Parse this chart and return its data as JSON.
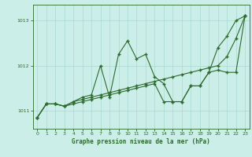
{
  "xlabel": "Graphe pression niveau de la mer (hPa)",
  "background_color": "#cceee8",
  "grid_color": "#aad8d2",
  "line_color": "#2d6a2d",
  "xlim": [
    -0.5,
    23.5
  ],
  "ylim": [
    1010.6,
    1013.35
  ],
  "yticks": [
    1011,
    1012,
    1013
  ],
  "xticks": [
    0,
    1,
    2,
    3,
    4,
    5,
    6,
    7,
    8,
    9,
    10,
    11,
    12,
    13,
    14,
    15,
    16,
    17,
    18,
    19,
    20,
    21,
    22,
    23
  ],
  "series1": {
    "x": [
      0,
      1,
      2,
      3,
      4,
      5,
      6,
      7,
      8,
      9,
      10,
      11,
      12,
      13,
      14,
      15,
      16,
      17,
      18,
      19,
      20,
      21,
      22,
      23
    ],
    "y": [
      1010.85,
      1011.15,
      1011.15,
      1011.1,
      1011.2,
      1011.3,
      1011.35,
      1012.0,
      1011.3,
      1012.25,
      1012.55,
      1012.15,
      1012.25,
      1011.75,
      1011.6,
      1011.2,
      1011.2,
      1011.55,
      1011.55,
      1011.85,
      1012.4,
      1012.65,
      1013.0,
      1013.1
    ]
  },
  "series2": {
    "x": [
      0,
      1,
      2,
      3,
      4,
      5,
      6,
      7,
      8,
      9,
      10,
      11,
      12,
      13,
      14,
      15,
      16,
      17,
      18,
      19,
      20,
      21,
      22,
      23
    ],
    "y": [
      1010.85,
      1011.15,
      1011.15,
      1011.1,
      1011.2,
      1011.25,
      1011.3,
      1011.35,
      1011.4,
      1011.45,
      1011.5,
      1011.55,
      1011.6,
      1011.65,
      1011.7,
      1011.75,
      1011.8,
      1011.85,
      1011.9,
      1011.95,
      1012.0,
      1012.2,
      1012.6,
      1013.1
    ]
  },
  "series3": {
    "x": [
      0,
      1,
      2,
      3,
      4,
      5,
      6,
      7,
      8,
      9,
      10,
      11,
      12,
      13,
      14,
      15,
      16,
      17,
      18,
      19,
      20,
      21,
      22,
      23
    ],
    "y": [
      1010.85,
      1011.15,
      1011.15,
      1011.1,
      1011.15,
      1011.2,
      1011.25,
      1011.3,
      1011.35,
      1011.4,
      1011.45,
      1011.5,
      1011.55,
      1011.6,
      1011.2,
      1011.2,
      1011.2,
      1011.55,
      1011.55,
      1011.85,
      1011.9,
      1011.85,
      1011.85,
      1013.1
    ]
  }
}
